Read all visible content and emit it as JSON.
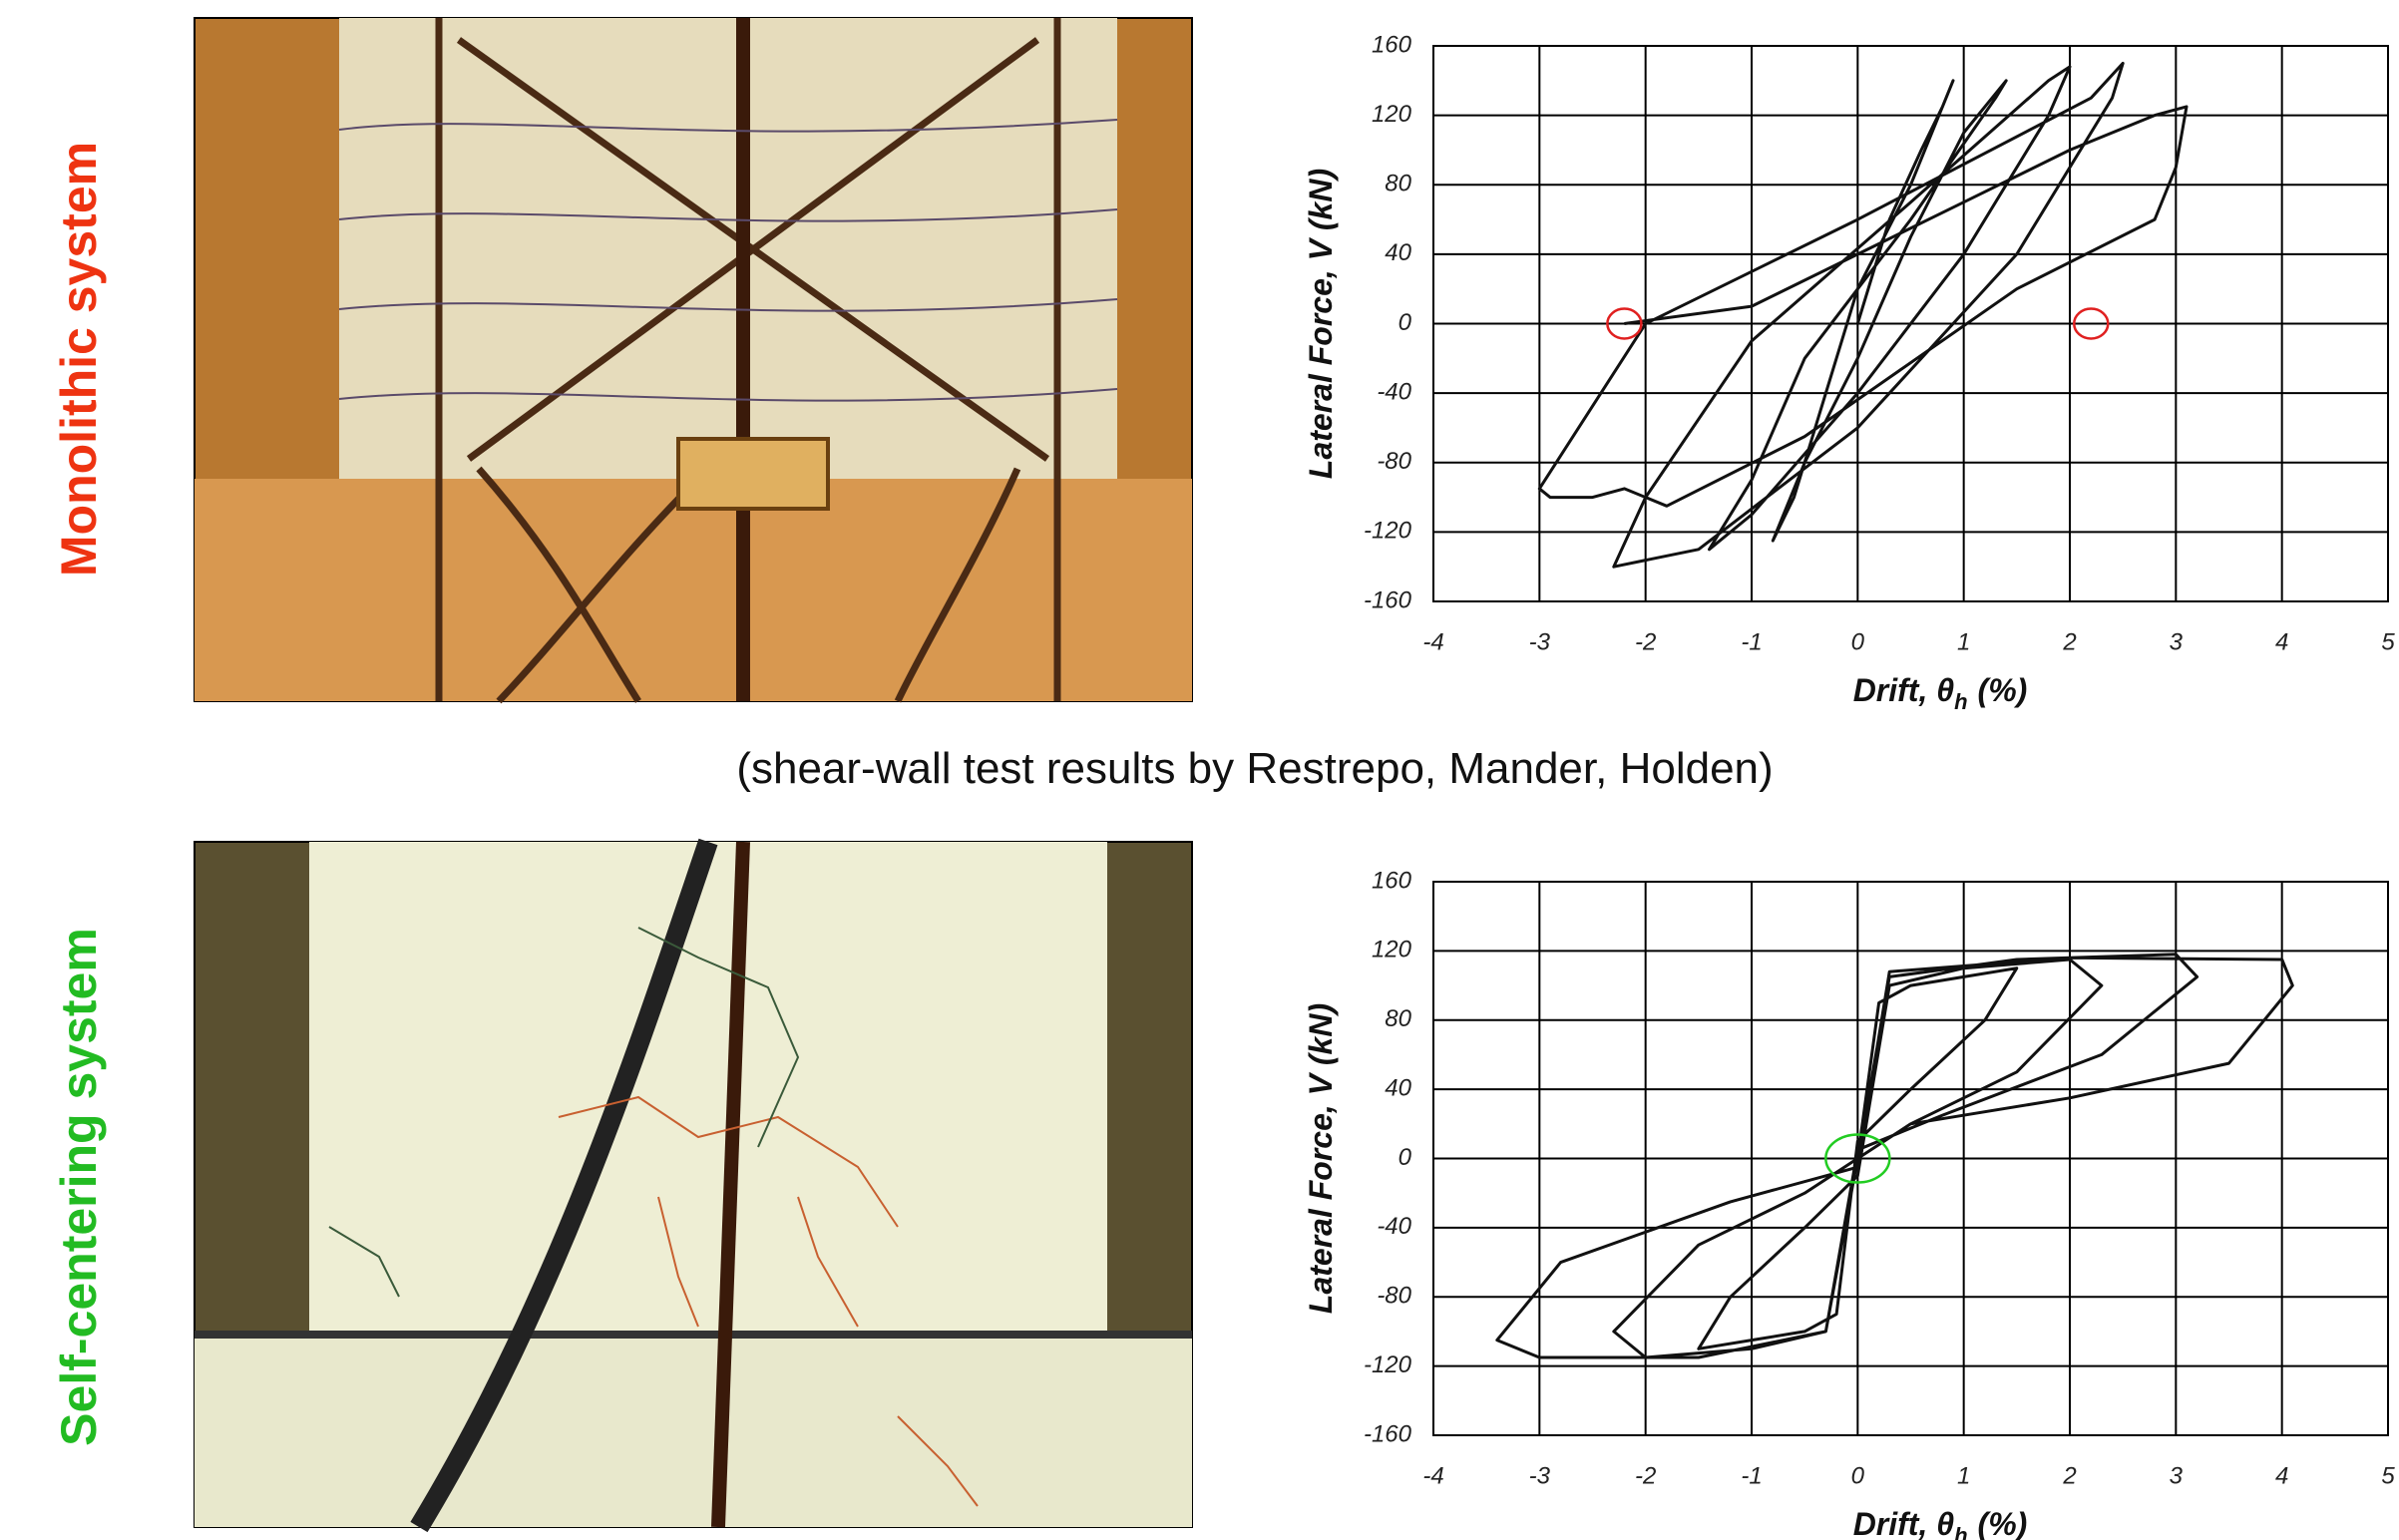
{
  "labels": {
    "top": "Monolithic system",
    "bottom": "Self-centering system",
    "caption": "(shear-wall test results by Restrepo, Mander, Holden)"
  },
  "chart_data": [
    {
      "type": "line",
      "ylabel": "Lateral Force, V (kN)",
      "xlabel": {
        "text": "Drift,  θ",
        "sub": "h",
        "unit": "(%)"
      },
      "xlim": [
        -4,
        5
      ],
      "ylim": [
        -160,
        160
      ],
      "xticks": [
        -4,
        -3,
        -2,
        -1,
        0,
        1,
        2,
        3,
        4,
        5
      ],
      "yticks": [
        -160,
        -120,
        -80,
        -40,
        0,
        40,
        80,
        120,
        160
      ],
      "grid": true,
      "x": [
        0,
        0.3,
        0.6,
        0.8,
        0.9,
        0.5,
        0,
        -0.3,
        -0.6,
        -0.8,
        -0.5,
        0,
        0.5,
        1,
        1.4,
        1.3,
        0.5,
        -0.5,
        -1,
        -1.4,
        -1,
        0,
        1,
        1.8,
        2,
        1.8,
        0.5,
        -1,
        -2,
        -2.3,
        -1.5,
        0,
        1.5,
        2.4,
        2.5,
        2.2,
        0,
        -2,
        -3,
        -2.9,
        -2.5,
        -2.2,
        -1.8,
        -0.5,
        1.5,
        2.8,
        3,
        3.1,
        2.8,
        2,
        1,
        0,
        -1,
        -2.2
      ],
      "series": [
        {
          "color": "#111111",
          "values": [
            0,
            60,
            100,
            125,
            140,
            80,
            20,
            -40,
            -100,
            -125,
            -80,
            -20,
            50,
            110,
            140,
            130,
            60,
            -20,
            -90,
            -130,
            -110,
            -40,
            40,
            120,
            148,
            140,
            70,
            -10,
            -100,
            -140,
            -130,
            -60,
            40,
            130,
            150,
            130,
            60,
            0,
            -95,
            -100,
            -100,
            -95,
            -105,
            -65,
            20,
            60,
            90,
            125,
            120,
            100,
            70,
            40,
            10,
            0
          ]
        }
      ],
      "markers": {
        "color": "#e02020",
        "x": [
          -2.2,
          2.2
        ],
        "values": [
          0,
          0
        ]
      }
    },
    {
      "type": "line",
      "ylabel": "Lateral Force, V (kN)",
      "xlabel": {
        "text": "Drift,  θ",
        "sub": "h",
        "unit": "(%)"
      },
      "xlim": [
        -4,
        5
      ],
      "ylim": [
        -160,
        160
      ],
      "xticks": [
        -4,
        -3,
        -2,
        -1,
        0,
        1,
        2,
        3,
        4,
        5
      ],
      "yticks": [
        -160,
        -120,
        -80,
        -40,
        0,
        40,
        80,
        120,
        160
      ],
      "grid": true,
      "x": [
        0,
        0.2,
        0.5,
        1,
        1.5,
        1.2,
        0.5,
        0,
        -0.2,
        -0.5,
        -1,
        -1.5,
        -1.2,
        -0.5,
        0,
        0.3,
        1,
        2,
        2.3,
        1.5,
        0.5,
        0,
        -0.3,
        -1,
        -2,
        -2.3,
        -1.5,
        -0.5,
        0,
        0.3,
        1.5,
        3,
        3.2,
        2.3,
        0.8,
        0,
        -0.3,
        -1.5,
        -3,
        -3.4,
        -2.8,
        -1.2,
        0,
        0.3,
        2,
        4,
        4.1,
        3.5,
        2,
        0.5,
        0
      ],
      "series": [
        {
          "color": "#111111",
          "values": [
            0,
            90,
            100,
            105,
            110,
            80,
            40,
            10,
            -90,
            -100,
            -105,
            -110,
            -80,
            -40,
            -10,
            100,
            110,
            115,
            100,
            50,
            20,
            0,
            -100,
            -110,
            -115,
            -100,
            -50,
            -20,
            0,
            105,
            115,
            118,
            105,
            60,
            25,
            5,
            -100,
            -115,
            -115,
            -105,
            -60,
            -25,
            -5,
            108,
            116,
            115,
            100,
            55,
            35,
            20,
            0
          ]
        }
      ],
      "markers": {
        "color": "#22cc22",
        "x": [
          0
        ],
        "values": [
          0
        ]
      }
    }
  ]
}
